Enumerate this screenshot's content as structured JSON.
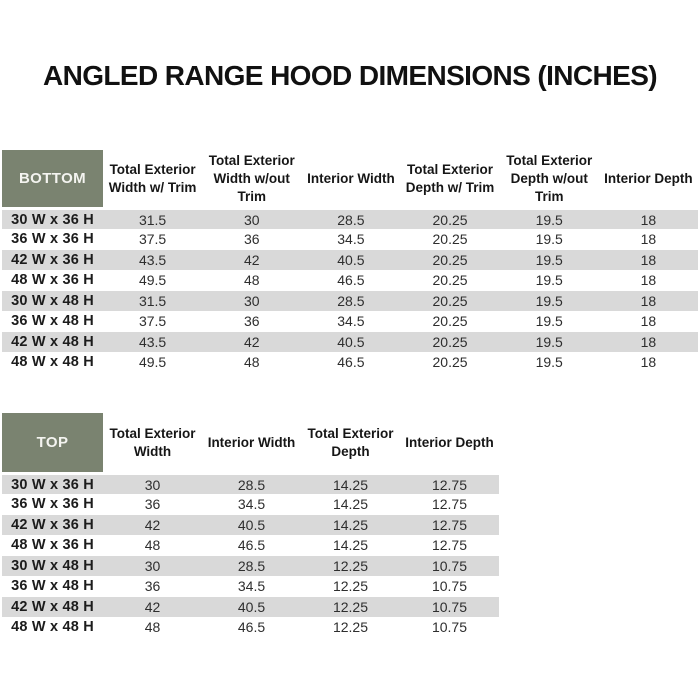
{
  "title": "ANGLED RANGE HOOD DIMENSIONS (INCHES)",
  "colors": {
    "header_green": "#7a8370",
    "stripe_gray": "#d9d9d9"
  },
  "tables": {
    "bottom": {
      "corner_label": "BOTTOM",
      "columns": [
        "Total Exterior Width w/ Trim",
        "Total Exterior Width w/out Trim",
        "Interior Width",
        "Total Exterior Depth w/ Trim",
        "Total Exterior Depth w/out Trim",
        "Interior Depth"
      ],
      "rows": [
        {
          "label": "30 W x 36 H",
          "values": [
            "31.5",
            "30",
            "28.5",
            "20.25",
            "19.5",
            "18"
          ]
        },
        {
          "label": "36 W x 36 H",
          "values": [
            "37.5",
            "36",
            "34.5",
            "20.25",
            "19.5",
            "18"
          ]
        },
        {
          "label": "42 W x 36 H",
          "values": [
            "43.5",
            "42",
            "40.5",
            "20.25",
            "19.5",
            "18"
          ]
        },
        {
          "label": "48 W x 36 H",
          "values": [
            "49.5",
            "48",
            "46.5",
            "20.25",
            "19.5",
            "18"
          ]
        },
        {
          "label": "30 W x 48 H",
          "values": [
            "31.5",
            "30",
            "28.5",
            "20.25",
            "19.5",
            "18"
          ]
        },
        {
          "label": "36 W x 48 H",
          "values": [
            "37.5",
            "36",
            "34.5",
            "20.25",
            "19.5",
            "18"
          ]
        },
        {
          "label": "42 W x 48 H",
          "values": [
            "43.5",
            "42",
            "40.5",
            "20.25",
            "19.5",
            "18"
          ]
        },
        {
          "label": "48 W x 48 H",
          "values": [
            "49.5",
            "48",
            "46.5",
            "20.25",
            "19.5",
            "18"
          ]
        }
      ]
    },
    "top": {
      "corner_label": "TOP",
      "columns": [
        "Total Exterior Width",
        "Interior Width",
        "Total Exterior Depth",
        "Interior Depth"
      ],
      "rows": [
        {
          "label": "30 W x 36 H",
          "values": [
            "30",
            "28.5",
            "14.25",
            "12.75"
          ]
        },
        {
          "label": "36 W x 36 H",
          "values": [
            "36",
            "34.5",
            "14.25",
            "12.75"
          ]
        },
        {
          "label": "42 W x 36 H",
          "values": [
            "42",
            "40.5",
            "14.25",
            "12.75"
          ]
        },
        {
          "label": "48 W x 36 H",
          "values": [
            "48",
            "46.5",
            "14.25",
            "12.75"
          ]
        },
        {
          "label": "30 W x 48 H",
          "values": [
            "30",
            "28.5",
            "12.25",
            "10.75"
          ]
        },
        {
          "label": "36 W x 48 H",
          "values": [
            "36",
            "34.5",
            "12.25",
            "10.75"
          ]
        },
        {
          "label": "42 W x 48 H",
          "values": [
            "42",
            "40.5",
            "12.25",
            "10.75"
          ]
        },
        {
          "label": "48 W x 48 H",
          "values": [
            "48",
            "46.5",
            "12.25",
            "10.75"
          ]
        }
      ]
    }
  }
}
